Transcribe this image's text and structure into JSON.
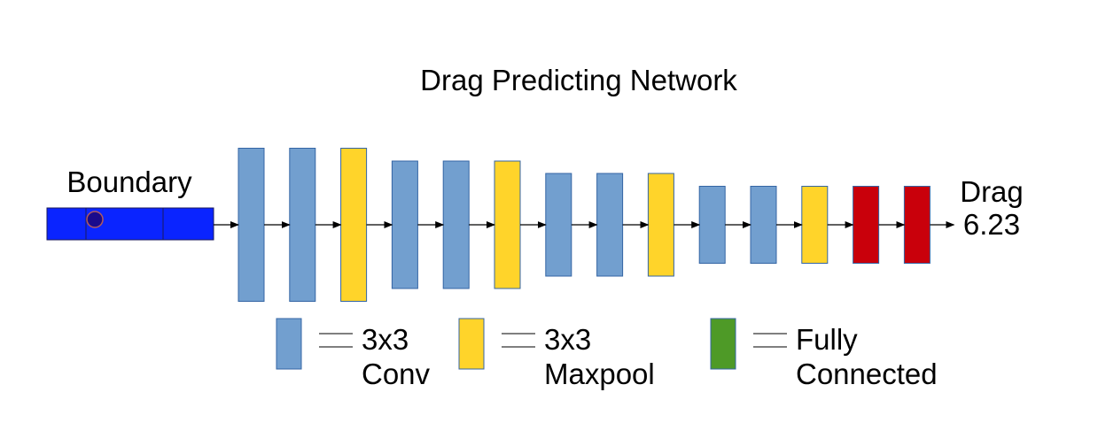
{
  "title": "Drag Predicting Network",
  "input": {
    "label": "Boundary",
    "color": "#0a24ff",
    "marker_color": "#1a0a8c"
  },
  "output": {
    "label": "Drag",
    "value": "6.23"
  },
  "colors": {
    "conv": "#729fcf",
    "maxpool": "#ffd42a",
    "fc_layer": "#c9000b",
    "fc_legend": "#4e9a27",
    "stroke": "#3465a4"
  },
  "layers": [
    "conv",
    "conv",
    "maxpool",
    "conv",
    "conv",
    "maxpool",
    "conv",
    "conv",
    "maxpool",
    "conv",
    "conv",
    "maxpool",
    "fc",
    "fc"
  ],
  "legend": [
    {
      "key": "conv",
      "line1": "3x3",
      "line2": "Conv"
    },
    {
      "key": "maxpool",
      "line1": "3x3",
      "line2": "Maxpool"
    },
    {
      "key": "fc",
      "line1": "Fully",
      "line2": "Connected"
    }
  ]
}
